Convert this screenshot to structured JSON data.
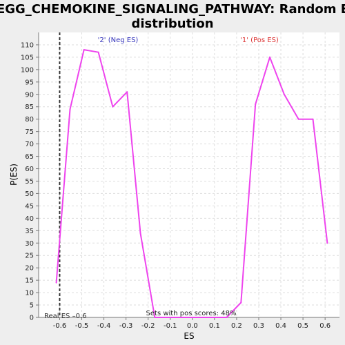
{
  "chart_data": {
    "type": "line",
    "title_line1": "KEGG_CHEMOKINE_SIGNALING_PATHWAY: Random ES",
    "title_line2": "distribution",
    "xlabel": "ES",
    "ylabel": "P(ES)",
    "xlim": [
      -0.695,
      0.665
    ],
    "ylim": [
      0,
      115
    ],
    "xticks": [
      -0.6,
      -0.5,
      -0.4,
      -0.3,
      -0.2,
      -0.1,
      0.0,
      0.1,
      0.2,
      0.3,
      0.4,
      0.5,
      0.6
    ],
    "xtick_labels": [
      "-0.6",
      "-0.5",
      "-0.4",
      "-0.3",
      "-0.2",
      "-0.1",
      "0.0",
      "0.1",
      "0.2",
      "0.3",
      "0.4",
      "0.5",
      "0.6"
    ],
    "yticks": [
      0,
      5,
      10,
      15,
      20,
      25,
      30,
      35,
      40,
      45,
      50,
      55,
      60,
      65,
      70,
      75,
      80,
      85,
      90,
      95,
      100,
      105,
      110
    ],
    "grid": true,
    "line_color": "#ee44ee",
    "series": [
      {
        "x": [
          -0.615,
          -0.553,
          -0.49,
          -0.425,
          -0.36,
          -0.295,
          -0.235,
          -0.17,
          0.155,
          0.22,
          0.285,
          0.35,
          0.415,
          0.48,
          0.545,
          0.61
        ],
        "y": [
          14,
          84,
          108,
          107,
          85,
          91,
          34,
          0,
          0,
          6,
          86,
          105,
          90,
          80,
          80,
          30
        ]
      }
    ],
    "real_es": {
      "value": -0.6,
      "label": "Real ES –0.6"
    },
    "annotations": {
      "neg_label": "'2' (Neg ES)",
      "pos_label": "'1' (Pos ES)",
      "pos_scores": "Sets with pos scores: 48%"
    },
    "colors": {
      "neg": "#3333bb",
      "pos": "#dd3333",
      "real_es_line": "#333333"
    }
  }
}
